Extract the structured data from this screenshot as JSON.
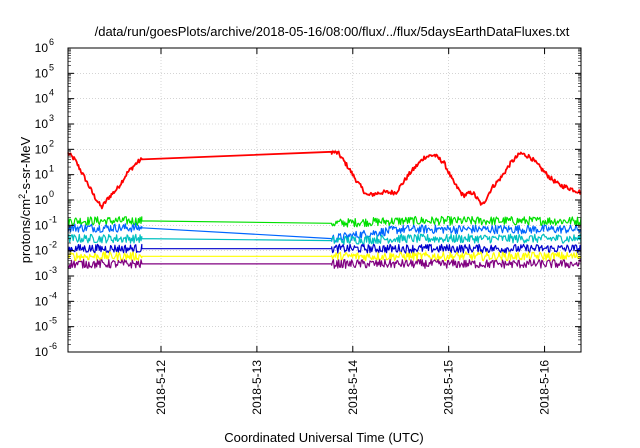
{
  "chart_data": {
    "type": "line",
    "title": "/data/run/goesPlots/archive/2018-05-16/08:00/flux/../flux/5daysEarthDataFluxes.txt",
    "xlabel": "Coordinated Universal Time (UTC)",
    "ylabel": "protons/cm2-s-sr-MeV",
    "yscale": "log",
    "ylim": [
      1e-06,
      1000000.0
    ],
    "xlim": [
      11.03,
      16.38
    ],
    "grid": true,
    "y_ticks": [
      {
        "base": "10",
        "exp": "-6"
      },
      {
        "base": "10",
        "exp": "-5"
      },
      {
        "base": "10",
        "exp": "-4"
      },
      {
        "base": "10",
        "exp": "-3"
      },
      {
        "base": "10",
        "exp": "-2"
      },
      {
        "base": "10",
        "exp": "-1"
      },
      {
        "base": "10",
        "exp": "0"
      },
      {
        "base": "10",
        "exp": "1"
      },
      {
        "base": "10",
        "exp": "2"
      },
      {
        "base": "10",
        "exp": "3"
      },
      {
        "base": "10",
        "exp": "4"
      },
      {
        "base": "10",
        "exp": "5"
      },
      {
        "base": "10",
        "exp": "6"
      }
    ],
    "x_ticks": [
      {
        "value": 12,
        "label": "2018-5-12"
      },
      {
        "value": 13,
        "label": "2018-5-13"
      },
      {
        "value": 14,
        "label": "2018-5-14"
      },
      {
        "value": 15,
        "label": "2018-5-15"
      },
      {
        "value": 16,
        "label": "2018-5-16"
      }
    ],
    "data_gap": [
      11.8,
      13.78
    ],
    "series": [
      {
        "color": "#ff0000",
        "x": [
          11.03,
          11.1,
          11.2,
          11.3,
          11.38,
          11.45,
          11.55,
          11.65,
          11.75,
          11.8,
          13.78,
          13.85,
          13.95,
          14.05,
          14.15,
          14.3,
          14.45,
          14.6,
          14.75,
          14.85,
          14.95,
          15.05,
          15.15,
          15.25,
          15.35,
          15.45,
          15.55,
          15.65,
          15.75,
          15.85,
          15.95,
          16.05,
          16.15,
          16.25,
          16.38
        ],
        "y": [
          70,
          40,
          8,
          1.5,
          0.5,
          1.2,
          3,
          12,
          30,
          40,
          80,
          70,
          20,
          5,
          1.5,
          2,
          2,
          12,
          50,
          60,
          30,
          5,
          1.5,
          2,
          0.6,
          3,
          8,
          30,
          70,
          50,
          20,
          8,
          4,
          3,
          2
        ]
      },
      {
        "color": "#00e000",
        "x": [
          11.03,
          11.5,
          11.8,
          13.78,
          14.5,
          15.5,
          16.38
        ],
        "y": [
          0.15,
          0.15,
          0.15,
          0.12,
          0.15,
          0.15,
          0.15
        ]
      },
      {
        "color": "#0066ff",
        "x": [
          11.03,
          11.5,
          11.8,
          13.78,
          14.5,
          15.5,
          16.38
        ],
        "y": [
          0.08,
          0.08,
          0.08,
          0.03,
          0.07,
          0.07,
          0.07
        ]
      },
      {
        "color": "#00c0c0",
        "x": [
          11.03,
          11.5,
          11.8,
          13.78,
          14.5,
          15.5,
          16.38
        ],
        "y": [
          0.03,
          0.03,
          0.03,
          0.025,
          0.03,
          0.03,
          0.03
        ]
      },
      {
        "color": "#0000cc",
        "x": [
          11.03,
          11.5,
          11.8,
          13.78,
          14.5,
          15.5,
          16.38
        ],
        "y": [
          0.012,
          0.012,
          0.012,
          0.012,
          0.012,
          0.012,
          0.012
        ]
      },
      {
        "color": "#ffff00",
        "x": [
          11.03,
          11.5,
          11.8,
          13.78,
          14.5,
          15.5,
          16.38
        ],
        "y": [
          0.006,
          0.006,
          0.006,
          0.006,
          0.006,
          0.006,
          0.006
        ]
      },
      {
        "color": "#800080",
        "x": [
          11.03,
          11.5,
          11.8,
          13.78,
          14.5,
          15.5,
          16.38
        ],
        "y": [
          0.003,
          0.003,
          0.003,
          0.003,
          0.003,
          0.003,
          0.003
        ]
      }
    ]
  }
}
